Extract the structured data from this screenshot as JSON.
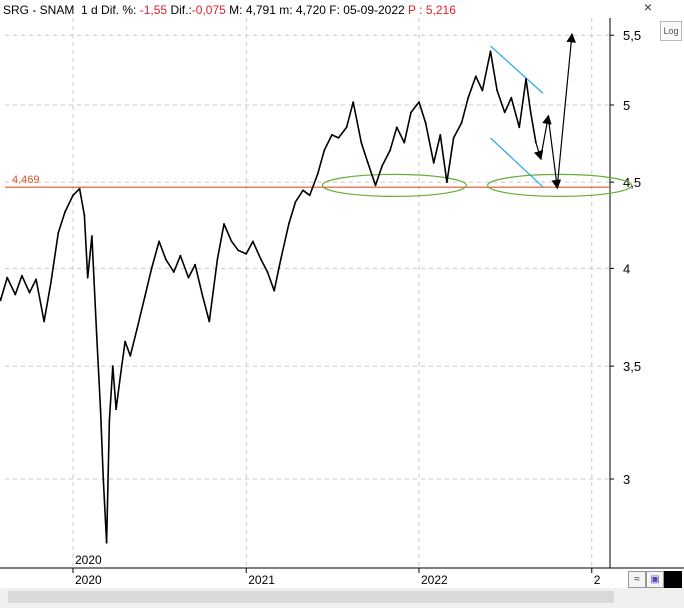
{
  "header": {
    "symbol": "SRG - SNAM",
    "timeframe": "1 d",
    "dif_pct_label": "Dif. %:",
    "dif_pct_value": "-1,55",
    "dif_label": "Dif.:",
    "dif_value": "-0,075",
    "max_label": "M:",
    "max_value": "4,791",
    "min_label": "m:",
    "min_value": "4,720",
    "date_label": "F:",
    "date_value": "05-09-2022",
    "price_label": "P :",
    "price_value": "5,216"
  },
  "controls": {
    "close": "×",
    "log": "Log"
  },
  "chart_data": {
    "type": "line",
    "y_scale": "log",
    "ylim": [
      2.6,
      5.75
    ],
    "y_ticks": [
      "5,5",
      "5",
      "4,5",
      "4",
      "3,5",
      "3"
    ],
    "x_ticks": [
      "2020",
      "2021",
      "2022",
      "2"
    ],
    "extra_year_label": "2020",
    "support_line": {
      "label": "4,469",
      "value": 4.469,
      "color": "#e0552a"
    },
    "series": [
      {
        "color": "#000000",
        "points": [
          [
            "2019-07-01",
            3.8
          ],
          [
            "2019-07-15",
            3.92
          ],
          [
            "2019-08-01",
            3.83
          ],
          [
            "2019-08-15",
            3.95
          ],
          [
            "2019-09-01",
            3.86
          ],
          [
            "2019-09-15",
            3.96
          ],
          [
            "2019-10-01",
            3.87
          ],
          [
            "2019-10-15",
            3.94
          ],
          [
            "2019-11-01",
            3.72
          ],
          [
            "2019-11-15",
            3.92
          ],
          [
            "2019-12-01",
            4.2
          ],
          [
            "2019-12-15",
            4.32
          ],
          [
            "2020-01-01",
            4.42
          ],
          [
            "2020-01-15",
            4.46
          ],
          [
            "2020-01-25",
            4.3
          ],
          [
            "2020-02-01",
            3.95
          ],
          [
            "2020-02-10",
            4.18
          ],
          [
            "2020-02-20",
            3.65
          ],
          [
            "2020-02-28",
            3.3
          ],
          [
            "2020-03-05",
            3.0
          ],
          [
            "2020-03-12",
            2.75
          ],
          [
            "2020-03-18",
            3.25
          ],
          [
            "2020-03-25",
            3.5
          ],
          [
            "2020-04-01",
            3.3
          ],
          [
            "2020-04-10",
            3.45
          ],
          [
            "2020-04-20",
            3.62
          ],
          [
            "2020-05-01",
            3.55
          ],
          [
            "2020-05-15",
            3.68
          ],
          [
            "2020-06-01",
            3.85
          ],
          [
            "2020-06-15",
            4.0
          ],
          [
            "2020-07-01",
            4.15
          ],
          [
            "2020-07-15",
            4.05
          ],
          [
            "2020-08-01",
            3.98
          ],
          [
            "2020-08-15",
            4.07
          ],
          [
            "2020-09-01",
            3.95
          ],
          [
            "2020-09-15",
            4.02
          ],
          [
            "2020-10-01",
            3.85
          ],
          [
            "2020-10-15",
            3.72
          ],
          [
            "2020-11-01",
            4.05
          ],
          [
            "2020-11-15",
            4.25
          ],
          [
            "2020-12-01",
            4.15
          ],
          [
            "2020-12-15",
            4.1
          ],
          [
            "2021-01-01",
            4.08
          ],
          [
            "2021-01-15",
            4.15
          ],
          [
            "2021-02-01",
            4.05
          ],
          [
            "2021-02-15",
            3.98
          ],
          [
            "2021-03-01",
            3.88
          ],
          [
            "2021-03-15",
            4.05
          ],
          [
            "2021-04-01",
            4.25
          ],
          [
            "2021-04-15",
            4.38
          ],
          [
            "2021-05-01",
            4.45
          ],
          [
            "2021-05-15",
            4.42
          ],
          [
            "2021-06-01",
            4.55
          ],
          [
            "2021-06-15",
            4.7
          ],
          [
            "2021-07-01",
            4.8
          ],
          [
            "2021-07-15",
            4.78
          ],
          [
            "2021-08-01",
            4.85
          ],
          [
            "2021-08-15",
            5.02
          ],
          [
            "2021-09-01",
            4.75
          ],
          [
            "2021-09-15",
            4.62
          ],
          [
            "2021-10-01",
            4.48
          ],
          [
            "2021-10-15",
            4.6
          ],
          [
            "2021-11-01",
            4.7
          ],
          [
            "2021-11-15",
            4.85
          ],
          [
            "2021-12-01",
            4.75
          ],
          [
            "2021-12-15",
            4.95
          ],
          [
            "2022-01-01",
            5.02
          ],
          [
            "2022-01-15",
            4.88
          ],
          [
            "2022-02-01",
            4.62
          ],
          [
            "2022-02-15",
            4.8
          ],
          [
            "2022-03-01",
            4.5
          ],
          [
            "2022-03-15",
            4.78
          ],
          [
            "2022-04-01",
            4.88
          ],
          [
            "2022-04-15",
            5.05
          ],
          [
            "2022-05-01",
            5.2
          ],
          [
            "2022-05-15",
            5.1
          ],
          [
            "2022-06-01",
            5.38
          ],
          [
            "2022-06-15",
            5.1
          ],
          [
            "2022-07-01",
            4.95
          ],
          [
            "2022-07-15",
            5.05
          ],
          [
            "2022-08-01",
            4.85
          ],
          [
            "2022-08-15",
            5.18
          ],
          [
            "2022-08-25",
            4.95
          ],
          [
            "2022-09-05",
            4.75
          ]
        ]
      }
    ],
    "projection": [
      [
        "2022-09-05",
        4.75
      ],
      [
        "2022-09-15",
        4.65
      ],
      [
        "2022-10-01",
        4.92
      ],
      [
        "2022-10-20",
        4.47
      ],
      [
        "2022-11-20",
        5.5
      ]
    ],
    "channel": {
      "color": "#29a8e0",
      "upper": [
        [
          "2022-06-01",
          5.42
        ],
        [
          "2022-09-20",
          5.08
        ]
      ],
      "lower": [
        [
          "2022-06-01",
          4.78
        ],
        [
          "2022-09-20",
          4.47
        ]
      ]
    },
    "ellipses": {
      "color": "#6aab3a",
      "items": [
        {
          "center": [
            "2021-11-10",
            4.48
          ]
        },
        {
          "center": [
            "2022-10-25",
            4.48
          ]
        }
      ]
    }
  }
}
